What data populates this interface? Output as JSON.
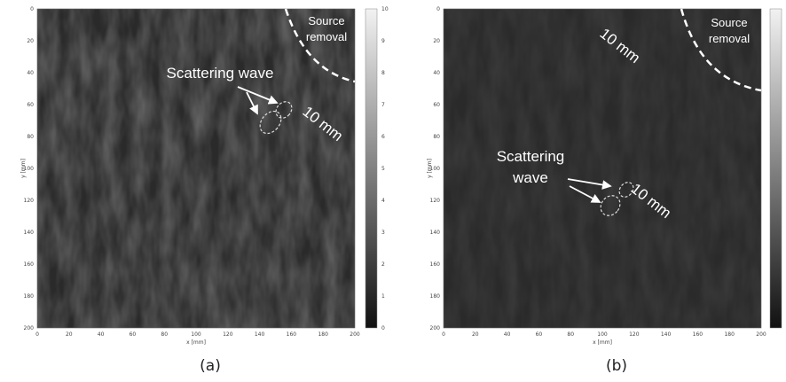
{
  "figure": {
    "panels": [
      {
        "label": "(a)",
        "x_label": "x [mm]",
        "y_label": "y [mm]",
        "x_ticks": [
          0,
          20,
          40,
          60,
          80,
          100,
          120,
          140,
          160,
          180,
          200
        ],
        "y_ticks": [
          0,
          20,
          40,
          60,
          80,
          100,
          120,
          140,
          160,
          180,
          200
        ],
        "colorbar_ticks": [
          0,
          1,
          2,
          3,
          4,
          5,
          6,
          7,
          8,
          9,
          10
        ],
        "scattering_label": [
          "Scattering wave"
        ],
        "distance_label": "10 mm",
        "source_label": [
          "Source",
          "removal"
        ]
      },
      {
        "label": "(b)",
        "x_label": "x [mm]",
        "y_label": "y [mm]",
        "x_ticks": [
          0,
          20,
          40,
          60,
          80,
          100,
          120,
          140,
          160,
          180,
          200
        ],
        "y_ticks": [
          0,
          20,
          40,
          60,
          80,
          100,
          120,
          140,
          160,
          180,
          200
        ],
        "colorbar_ticks": [],
        "scattering_label": [
          "Scattering",
          "wave"
        ],
        "distance_label": "10 mm",
        "source_label": [
          "Source",
          "removal"
        ],
        "distance_label_2": "10 mm"
      }
    ]
  }
}
